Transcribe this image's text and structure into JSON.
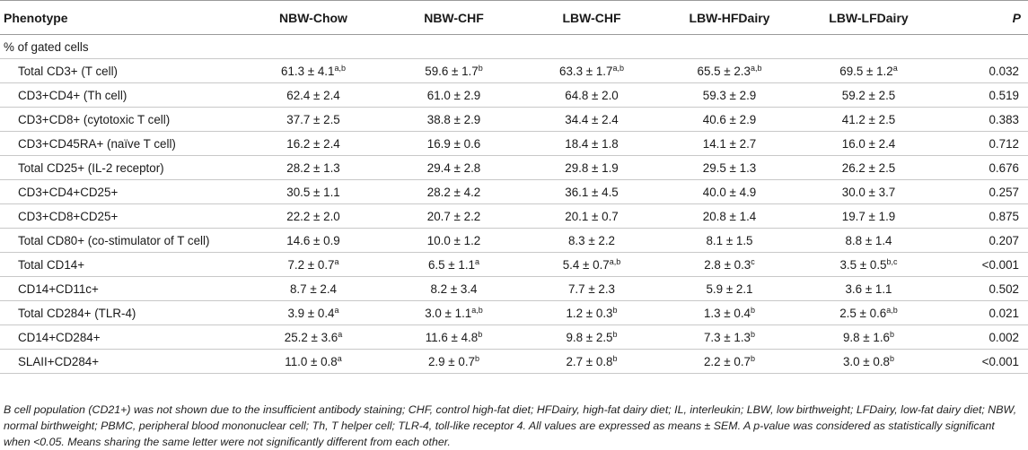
{
  "headers": {
    "phenotype": "Phenotype",
    "groups": [
      "NBW-Chow",
      "NBW-CHF",
      "LBW-CHF",
      "LBW-HFDairy",
      "LBW-LFDairy"
    ],
    "p": "P"
  },
  "section_label": "% of gated cells",
  "rows": [
    {
      "label": "Total CD3+ (T cell)",
      "cells": [
        [
          "61.3 ± 4.1",
          "a,b"
        ],
        [
          "59.6 ± 1.7",
          "b"
        ],
        [
          "63.3 ± 1.7",
          "a,b"
        ],
        [
          "65.5 ± 2.3",
          "a,b"
        ],
        [
          "69.5 ± 1.2",
          "a"
        ]
      ],
      "p": "0.032"
    },
    {
      "label": "CD3+CD4+ (Th cell)",
      "cells": [
        [
          "62.4 ± 2.4",
          ""
        ],
        [
          "61.0 ± 2.9",
          ""
        ],
        [
          "64.8 ± 2.0",
          ""
        ],
        [
          "59.3 ± 2.9",
          ""
        ],
        [
          "59.2 ± 2.5",
          ""
        ]
      ],
      "p": "0.519"
    },
    {
      "label": "CD3+CD8+ (cytotoxic T cell)",
      "cells": [
        [
          "37.7 ± 2.5",
          ""
        ],
        [
          "38.8 ± 2.9",
          ""
        ],
        [
          "34.4 ± 2.4",
          ""
        ],
        [
          "40.6 ± 2.9",
          ""
        ],
        [
          "41.2 ± 2.5",
          ""
        ]
      ],
      "p": "0.383"
    },
    {
      "label": "CD3+CD45RA+ (naïve T cell)",
      "cells": [
        [
          "16.2 ± 2.4",
          ""
        ],
        [
          "16.9 ± 0.6",
          ""
        ],
        [
          "18.4 ± 1.8",
          ""
        ],
        [
          "14.1 ± 2.7",
          ""
        ],
        [
          "16.0 ± 2.4",
          ""
        ]
      ],
      "p": "0.712"
    },
    {
      "label": "Total CD25+ (IL-2 receptor)",
      "cells": [
        [
          "28.2 ± 1.3",
          ""
        ],
        [
          "29.4 ± 2.8",
          ""
        ],
        [
          "29.8 ± 1.9",
          ""
        ],
        [
          "29.5 ± 1.3",
          ""
        ],
        [
          "26.2 ± 2.5",
          ""
        ]
      ],
      "p": "0.676"
    },
    {
      "label": "CD3+CD4+CD25+",
      "cells": [
        [
          "30.5 ± 1.1",
          ""
        ],
        [
          "28.2 ± 4.2",
          ""
        ],
        [
          "36.1 ± 4.5",
          ""
        ],
        [
          "40.0 ± 4.9",
          ""
        ],
        [
          "30.0 ± 3.7",
          ""
        ]
      ],
      "p": "0.257"
    },
    {
      "label": "CD3+CD8+CD25+",
      "cells": [
        [
          "22.2 ± 2.0",
          ""
        ],
        [
          "20.7 ± 2.2",
          ""
        ],
        [
          "20.1 ± 0.7",
          ""
        ],
        [
          "20.8 ± 1.4",
          ""
        ],
        [
          "19.7 ± 1.9",
          ""
        ]
      ],
      "p": "0.875"
    },
    {
      "label": "Total CD80+ (co-stimulator of T cell)",
      "cells": [
        [
          "14.6 ± 0.9",
          ""
        ],
        [
          "10.0 ± 1.2",
          ""
        ],
        [
          "8.3 ± 2.2",
          ""
        ],
        [
          "8.1 ± 1.5",
          ""
        ],
        [
          "8.8 ± 1.4",
          ""
        ]
      ],
      "p": "0.207"
    },
    {
      "label": "Total CD14+",
      "cells": [
        [
          "7.2 ± 0.7",
          "a"
        ],
        [
          "6.5 ± 1.1",
          "a"
        ],
        [
          "5.4 ± 0.7",
          "a,b"
        ],
        [
          "2.8 ± 0.3",
          "c"
        ],
        [
          "3.5 ± 0.5",
          "b,c"
        ]
      ],
      "p": "<0.001"
    },
    {
      "label": "CD14+CD11c+",
      "cells": [
        [
          "8.7 ± 2.4",
          ""
        ],
        [
          "8.2 ± 3.4",
          ""
        ],
        [
          "7.7 ± 2.3",
          ""
        ],
        [
          "5.9 ± 2.1",
          ""
        ],
        [
          "3.6 ± 1.1",
          ""
        ]
      ],
      "p": "0.502"
    },
    {
      "label": "Total CD284+ (TLR-4)",
      "cells": [
        [
          "3.9 ± 0.4",
          "a"
        ],
        [
          "3.0 ± 1.1",
          "a,b"
        ],
        [
          "1.2 ± 0.3",
          "b"
        ],
        [
          "1.3 ± 0.4",
          "b"
        ],
        [
          "2.5 ± 0.6",
          "a,b"
        ]
      ],
      "p": "0.021"
    },
    {
      "label": "CD14+CD284+",
      "cells": [
        [
          "25.2 ± 3.6",
          "a"
        ],
        [
          "11.6 ± 4.8",
          "b"
        ],
        [
          "9.8 ± 2.5",
          "b"
        ],
        [
          "7.3 ± 1.3",
          "b"
        ],
        [
          "9.8 ± 1.6",
          "b"
        ]
      ],
      "p": "0.002"
    },
    {
      "label": "SLAII+CD284+",
      "cells": [
        [
          "11.0 ± 0.8",
          "a"
        ],
        [
          "2.9 ± 0.7",
          "b"
        ],
        [
          "2.7 ± 0.8",
          "b"
        ],
        [
          "2.2 ± 0.7",
          "b"
        ],
        [
          "3.0 ± 0.8",
          "b"
        ]
      ],
      "p": "<0.001"
    }
  ],
  "footnote": "B cell population (CD21+) was not shown due to the insufficient antibody staining; CHF, control high-fat diet; HFDairy, high-fat dairy diet; IL, interleukin; LBW, low birthweight; LFDairy, low-fat dairy diet; NBW, normal birthweight; PBMC, peripheral blood mononuclear cell; Th, T helper cell; TLR-4, toll-like receptor 4. All values are expressed as means ± SEM. A p-value was considered as statistically significant when <0.05. Means sharing the same letter were not significantly different from each other."
}
